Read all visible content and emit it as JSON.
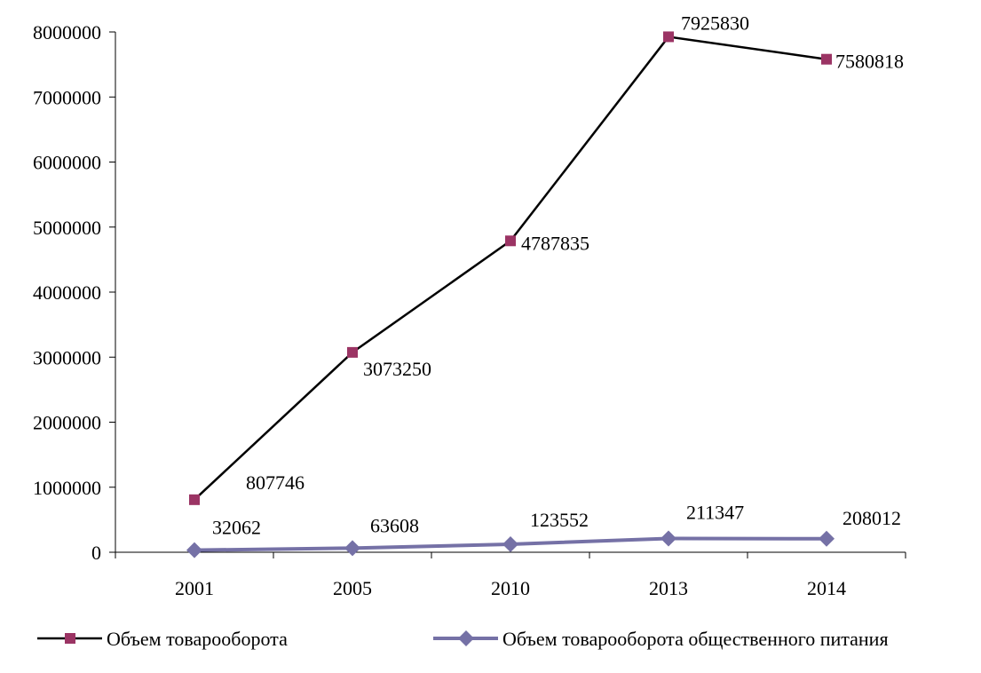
{
  "chart_data": {
    "type": "line",
    "categories": [
      "2001",
      "2005",
      "2010",
      "2013",
      "2014"
    ],
    "ylim": [
      0,
      8000000
    ],
    "yticks": [
      0,
      1000000,
      2000000,
      3000000,
      4000000,
      5000000,
      6000000,
      7000000,
      8000000
    ],
    "ytick_labels": [
      "0",
      "1000000",
      "2000000",
      "3000000",
      "4000000",
      "5000000",
      "6000000",
      "7000000",
      "8000000"
    ],
    "grid": false,
    "legend_position": "bottom",
    "series": [
      {
        "name": "Объем товарооборота",
        "values": [
          807746,
          3073250,
          4787835,
          7925830,
          7580818
        ],
        "labels": [
          "807746",
          "3073250",
          "4787835",
          "7925830",
          "7580818"
        ],
        "line_color": "#000000",
        "marker_color": "#9B3464",
        "marker": "square"
      },
      {
        "name": "Объем товарооборота общественного питания",
        "values": [
          32062,
          63608,
          123552,
          211347,
          208012
        ],
        "labels": [
          "32062",
          "63608",
          "123552",
          "211347",
          "208012"
        ],
        "line_color": "#7571A6",
        "marker_color": "#7571A6",
        "marker": "diamond"
      }
    ]
  }
}
